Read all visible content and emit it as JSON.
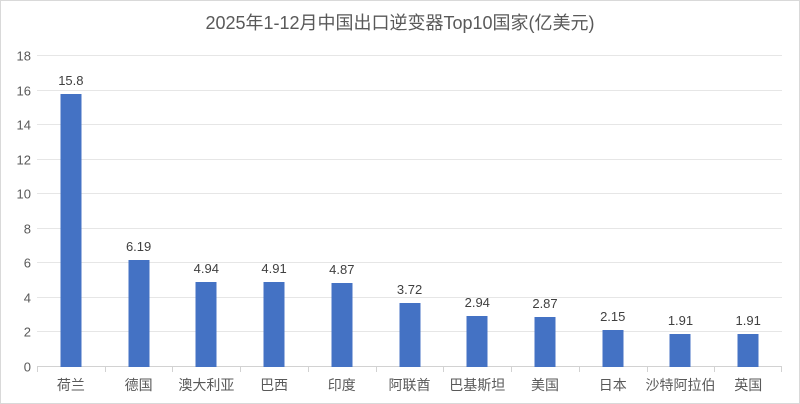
{
  "chart_data": {
    "type": "bar",
    "title": "2025年1-12月中国出口逆变器Top10国家(亿美元)",
    "categories": [
      "荷兰",
      "德国",
      "澳大利亚",
      "巴西",
      "印度",
      "阿联酋",
      "巴基斯坦",
      "美国",
      "日本",
      "沙特阿拉伯",
      "英国"
    ],
    "values": [
      15.8,
      6.19,
      4.94,
      4.91,
      4.87,
      3.72,
      2.94,
      2.87,
      2.15,
      1.91,
      1.91
    ],
    "data_labels": [
      "15.8",
      "6.19",
      "4.94",
      "4.91",
      "4.87",
      "3.72",
      "2.94",
      "2.87",
      "2.15",
      "1.91",
      "1.91"
    ],
    "xlabel": "",
    "ylabel": "",
    "ylim": [
      0,
      18
    ],
    "yticks": [
      0,
      2,
      4,
      6,
      8,
      10,
      12,
      14,
      16,
      18
    ],
    "grid": true,
    "legend": "none",
    "bar_color": "#4472c4"
  },
  "colors": {
    "bar": "#4472c4",
    "gridline": "#e6e6e6",
    "axis_line": "#d2d2d2",
    "title_text": "#595959",
    "axis_text": "#595959",
    "data_label_text": "#404040",
    "background": "#ffffff",
    "frame_border": "#d9d9d9"
  }
}
